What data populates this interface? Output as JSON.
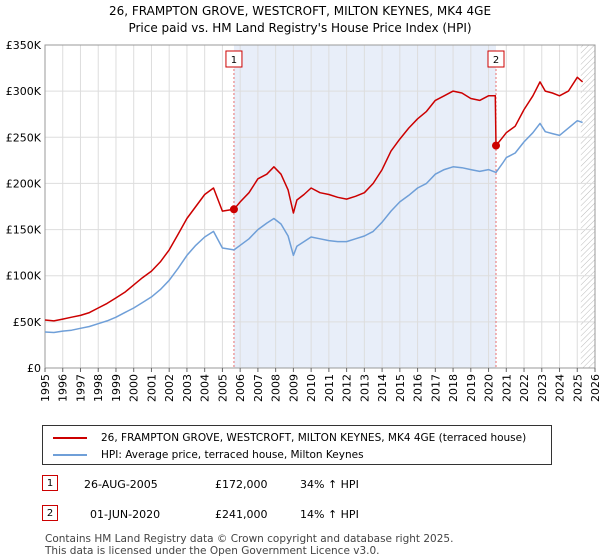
{
  "header": {
    "title_line1": "26, FRAMPTON GROVE, WESTCROFT, MILTON KEYNES, MK4 4GE",
    "title_line2": "Price paid vs. HM Land Registry's House Price Index (HPI)"
  },
  "colors": {
    "property": "#cc0000",
    "hpi": "#6f9fd8",
    "shade": "#e8eef9",
    "vline": "#e87070",
    "grid": "#dddddd"
  },
  "chart_data": {
    "type": "line",
    "title": "26, FRAMPTON GROVE, WESTCROFT, MILTON KEYNES, MK4 4GE — Price paid vs. HM Land Registry's House Price Index (HPI)",
    "xlim": [
      1995,
      2026
    ],
    "ylim": [
      0,
      350000
    ],
    "y_ticks": [
      {
        "value": 0,
        "label": "£0"
      },
      {
        "value": 50000,
        "label": "£50K"
      },
      {
        "value": 100000,
        "label": "£100K"
      },
      {
        "value": 150000,
        "label": "£150K"
      },
      {
        "value": 200000,
        "label": "£200K"
      },
      {
        "value": 250000,
        "label": "£250K"
      },
      {
        "value": 300000,
        "label": "£300K"
      },
      {
        "value": 350000,
        "label": "£350K"
      }
    ],
    "x_ticks": [
      "1995",
      "1996",
      "1997",
      "1998",
      "1999",
      "2000",
      "2001",
      "2002",
      "2003",
      "2004",
      "2005",
      "2006",
      "2007",
      "2008",
      "2009",
      "2010",
      "2011",
      "2012",
      "2013",
      "2014",
      "2015",
      "2016",
      "2017",
      "2018",
      "2019",
      "2020",
      "2021",
      "2022",
      "2023",
      "2024",
      "2025",
      "2026"
    ],
    "shaded_period": [
      2005.65,
      2020.42
    ],
    "hatched_from": 2025.2,
    "series": [
      {
        "name": "26, FRAMPTON GROVE, WESTCROFT, MILTON KEYNES, MK4 4GE (terraced house)",
        "x": [
          1995.0,
          1995.5,
          1996.0,
          1996.5,
          1997.0,
          1997.5,
          1998.0,
          1998.5,
          1999.0,
          1999.5,
          2000.0,
          2000.5,
          2001.0,
          2001.5,
          2002.0,
          2002.5,
          2003.0,
          2003.5,
          2004.0,
          2004.5,
          2005.0,
          2005.65,
          2006.0,
          2006.5,
          2007.0,
          2007.5,
          2007.9,
          2008.3,
          2008.7,
          2009.0,
          2009.2,
          2009.6,
          2010.0,
          2010.5,
          2011.0,
          2011.5,
          2012.0,
          2012.5,
          2013.0,
          2013.5,
          2014.0,
          2014.5,
          2015.0,
          2015.5,
          2016.0,
          2016.5,
          2017.0,
          2017.5,
          2018.0,
          2018.5,
          2019.0,
          2019.5,
          2020.0,
          2020.38,
          2020.42,
          2020.8,
          2021.0,
          2021.5,
          2022.0,
          2022.5,
          2022.9,
          2023.2,
          2023.6,
          2024.0,
          2024.5,
          2025.0,
          2025.3
        ],
        "values": [
          52000,
          51000,
          53000,
          55000,
          57000,
          60000,
          65000,
          70000,
          76000,
          82000,
          90000,
          98000,
          105000,
          115000,
          128000,
          145000,
          162000,
          175000,
          188000,
          195000,
          170000,
          172000,
          180000,
          190000,
          205000,
          210000,
          218000,
          210000,
          193000,
          168000,
          182000,
          188000,
          195000,
          190000,
          188000,
          185000,
          183000,
          186000,
          190000,
          200000,
          215000,
          235000,
          248000,
          260000,
          270000,
          278000,
          290000,
          295000,
          300000,
          298000,
          292000,
          290000,
          295000,
          295000,
          241000,
          250000,
          255000,
          262000,
          280000,
          295000,
          310000,
          300000,
          298000,
          295000,
          300000,
          315000,
          310000
        ]
      },
      {
        "name": "HPI: Average price, terraced house, Milton Keynes",
        "x": [
          1995.0,
          1995.5,
          1996.0,
          1996.5,
          1997.0,
          1997.5,
          1998.0,
          1998.5,
          1999.0,
          1999.5,
          2000.0,
          2000.5,
          2001.0,
          2001.5,
          2002.0,
          2002.5,
          2003.0,
          2003.5,
          2004.0,
          2004.5,
          2005.0,
          2005.65,
          2006.0,
          2006.5,
          2007.0,
          2007.5,
          2007.9,
          2008.3,
          2008.7,
          2009.0,
          2009.2,
          2009.6,
          2010.0,
          2010.5,
          2011.0,
          2011.5,
          2012.0,
          2012.5,
          2013.0,
          2013.5,
          2014.0,
          2014.5,
          2015.0,
          2015.5,
          2016.0,
          2016.5,
          2017.0,
          2017.5,
          2018.0,
          2018.5,
          2019.0,
          2019.5,
          2020.0,
          2020.42,
          2020.8,
          2021.0,
          2021.5,
          2022.0,
          2022.5,
          2022.9,
          2023.2,
          2023.6,
          2024.0,
          2024.5,
          2025.0,
          2025.3
        ],
        "values": [
          39000,
          38500,
          40000,
          41000,
          43000,
          45000,
          48000,
          51000,
          55000,
          60000,
          65000,
          71000,
          77000,
          85000,
          95000,
          108000,
          122000,
          133000,
          142000,
          148000,
          130000,
          128000,
          133000,
          140000,
          150000,
          157000,
          162000,
          156000,
          143000,
          122000,
          132000,
          137000,
          142000,
          140000,
          138000,
          137000,
          137000,
          140000,
          143000,
          148000,
          158000,
          170000,
          180000,
          187000,
          195000,
          200000,
          210000,
          215000,
          218000,
          217000,
          215000,
          213000,
          215000,
          212000,
          222000,
          228000,
          233000,
          245000,
          255000,
          265000,
          256000,
          254000,
          252000,
          260000,
          268000,
          266000
        ]
      }
    ],
    "markers": [
      {
        "label": "1",
        "x": 2005.65,
        "value": 172000
      },
      {
        "label": "2",
        "x": 2020.42,
        "value": 241000
      }
    ]
  },
  "legend": {
    "property_label": "26, FRAMPTON GROVE, WESTCROFT, MILTON KEYNES, MK4 4GE (terraced house)",
    "hpi_label": "HPI: Average price, terraced house, Milton Keynes"
  },
  "transactions": [
    {
      "num": "1",
      "date": "26-AUG-2005",
      "price": "£172,000",
      "hpi": "34% ↑ HPI"
    },
    {
      "num": "2",
      "date": "01-JUN-2020",
      "price": "£241,000",
      "hpi": "14% ↑ HPI"
    }
  ],
  "footer": {
    "line1": "Contains HM Land Registry data © Crown copyright and database right 2025.",
    "line2": "This data is licensed under the Open Government Licence v3.0."
  }
}
